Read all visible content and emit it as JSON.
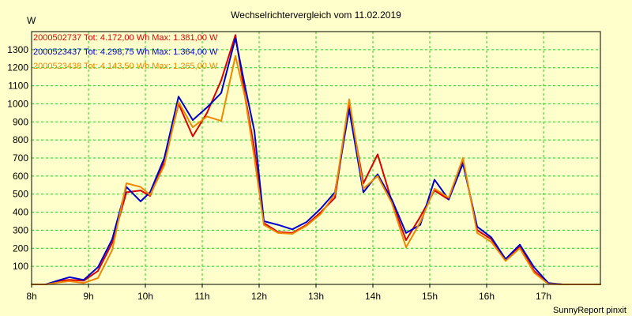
{
  "chart_data": {
    "type": "line",
    "title": "Wechselrichtervergleich vom 11.02.2019",
    "ylabel": "W",
    "xlabel": "",
    "footer": "SunnyReport pinxit",
    "xlim": [
      8,
      18
    ],
    "ylim": [
      0,
      1400
    ],
    "x_ticks": [
      8,
      9,
      10,
      11,
      12,
      13,
      14,
      15,
      16,
      17
    ],
    "x_tick_labels": [
      "8h",
      "9h",
      "10h",
      "11h",
      "12h",
      "13h",
      "14h",
      "15h",
      "16h",
      "17h"
    ],
    "y_ticks": [
      100,
      200,
      300,
      400,
      500,
      600,
      700,
      800,
      900,
      1000,
      1100,
      1200,
      1300
    ],
    "grid": true,
    "legend_position": "top-left",
    "x": [
      8.0,
      8.25,
      8.5,
      8.667,
      8.917,
      9.167,
      9.417,
      9.667,
      9.917,
      10.083,
      10.333,
      10.583,
      10.833,
      11.083,
      11.333,
      11.583,
      11.75,
      11.917,
      12.083,
      12.333,
      12.583,
      12.833,
      13.083,
      13.333,
      13.583,
      13.833,
      14.083,
      14.333,
      14.583,
      14.833,
      15.083,
      15.333,
      15.583,
      15.833,
      16.083,
      16.333,
      16.583,
      16.833,
      17.083,
      17.333,
      17.583,
      17.833,
      18.0
    ],
    "series": [
      {
        "name": "2000502737",
        "label": "2000502737 Tot: 4.172,00 Wh Max: 1.381,00 W",
        "color": "#dd0000",
        "values": [
          0,
          0,
          20,
          25,
          20,
          75,
          230,
          510,
          520,
          490,
          680,
          1000,
          820,
          950,
          1130,
          1381,
          1050,
          750,
          340,
          290,
          285,
          330,
          400,
          480,
          1000,
          560,
          720,
          460,
          245,
          375,
          520,
          470,
          690,
          300,
          250,
          140,
          210,
          75,
          5,
          0,
          0,
          0,
          0
        ]
      },
      {
        "name": "2000523437",
        "label": "2000523437 Tot: 4.298,75 Wh Max: 1.364,00 W",
        "color": "#0000cc",
        "values": [
          0,
          0,
          25,
          40,
          25,
          95,
          250,
          540,
          460,
          510,
          700,
          1040,
          910,
          980,
          1060,
          1364,
          1100,
          850,
          350,
          330,
          305,
          345,
          420,
          510,
          970,
          510,
          610,
          470,
          285,
          330,
          580,
          470,
          670,
          320,
          260,
          140,
          220,
          95,
          8,
          0,
          0,
          0,
          0
        ]
      },
      {
        "name": "2000523438",
        "label": "2000523438 Tot: 4.143,50 Wh Max: 1.265,00 W",
        "color": "#ee8800",
        "values": [
          0,
          0,
          12,
          18,
          8,
          35,
          190,
          560,
          540,
          495,
          660,
          1010,
          870,
          930,
          905,
          1265,
          1040,
          700,
          330,
          285,
          280,
          325,
          390,
          500,
          1025,
          530,
          600,
          450,
          205,
          345,
          530,
          480,
          700,
          285,
          235,
          130,
          200,
          65,
          2,
          0,
          0,
          0,
          0
        ]
      }
    ]
  }
}
